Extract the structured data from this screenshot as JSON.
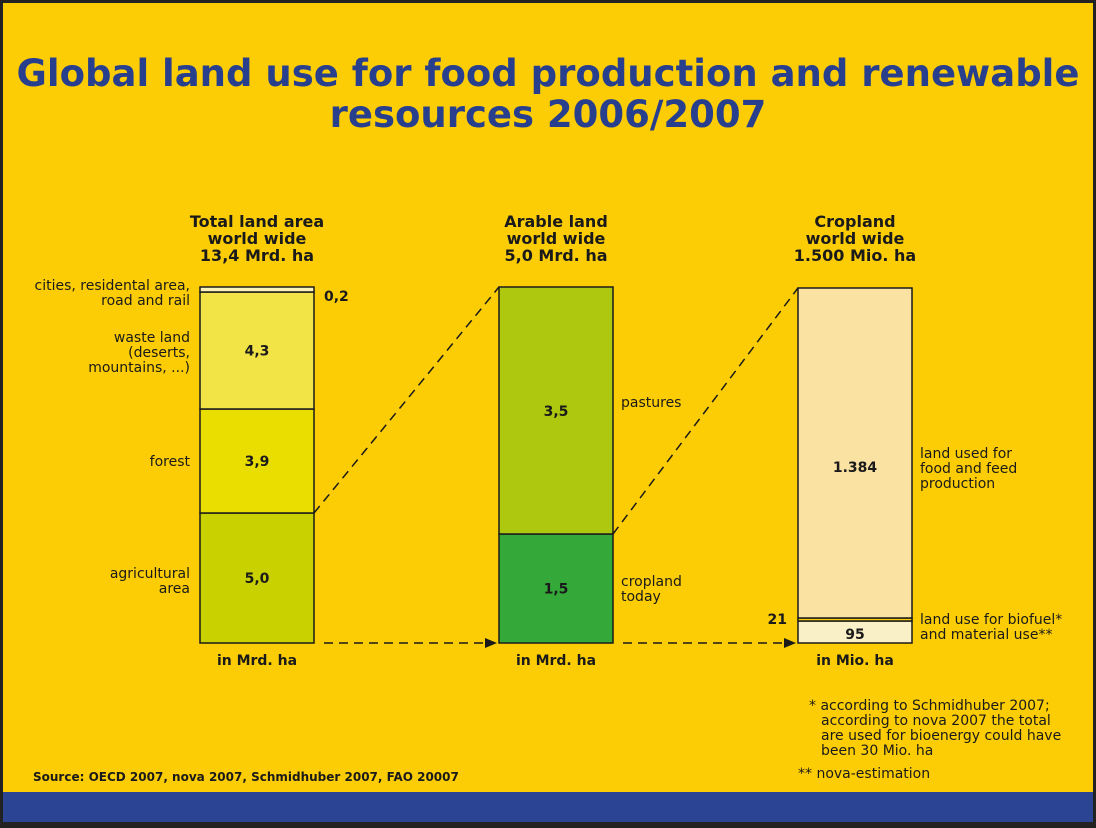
{
  "title": {
    "line1": "Global land use for food production and renewable",
    "line2": "resources 2006/2007"
  },
  "colors": {
    "background": "#fccd05",
    "title": "#283f8e",
    "band": "#2b4494"
  },
  "chart_data": [
    {
      "type": "bar",
      "stacked": true,
      "header": [
        "Total land area",
        "world wide",
        "13,4 Mrd. ha"
      ],
      "unit_label": "in Mrd. ha",
      "segments": [
        {
          "value": 5.0,
          "value_label": "5,0",
          "label": [
            "agricultural",
            "area"
          ],
          "color": "#c9d200"
        },
        {
          "value": 3.9,
          "value_label": "3,9",
          "label": [
            "forest"
          ],
          "color": "#e9de00"
        },
        {
          "value": 4.3,
          "value_label": "4,3",
          "label": [
            "waste land",
            "(deserts,",
            "mountains, ...)"
          ],
          "color": "#f2e347"
        },
        {
          "value": 0.2,
          "value_label": "0,2",
          "label": [
            "cities, residental area,",
            "road and rail"
          ],
          "color": "#faf2b8"
        }
      ]
    },
    {
      "type": "bar",
      "stacked": true,
      "header": [
        "Arable land",
        "world wide",
        "5,0 Mrd. ha"
      ],
      "unit_label": "in Mrd. ha",
      "segments": [
        {
          "value": 1.5,
          "value_label": "1,5",
          "label": [
            "cropland",
            "today"
          ],
          "color": "#35a83a"
        },
        {
          "value": 3.5,
          "value_label": "3,5",
          "label": [
            "pastures"
          ],
          "color": "#adc80f"
        }
      ]
    },
    {
      "type": "bar",
      "stacked": true,
      "header": [
        "Cropland",
        "world wide",
        "1.500 Mio. ha"
      ],
      "unit_label": "in Mio. ha",
      "segments": [
        {
          "value": 95,
          "value_label": "95",
          "label": [
            "land use for biofuel*",
            "and material use**"
          ],
          "color": "#faf0c8"
        },
        {
          "value": 21,
          "value_label": "21",
          "label": [],
          "color": "#fccd05"
        },
        {
          "value": 1384,
          "value_label": "1.384",
          "label": [
            "land used for",
            "food and feed",
            "production"
          ],
          "color": "#f9e2a2"
        }
      ]
    }
  ],
  "notes": [
    "* according to Schmidhuber 2007;",
    "according to nova 2007 the total",
    "are used for bioenergy could have",
    "been 30 Mio. ha",
    "** nova-estimation"
  ],
  "source": "Source: OECD 2007, nova 2007, Schmidhuber 2007, FAO 20007"
}
